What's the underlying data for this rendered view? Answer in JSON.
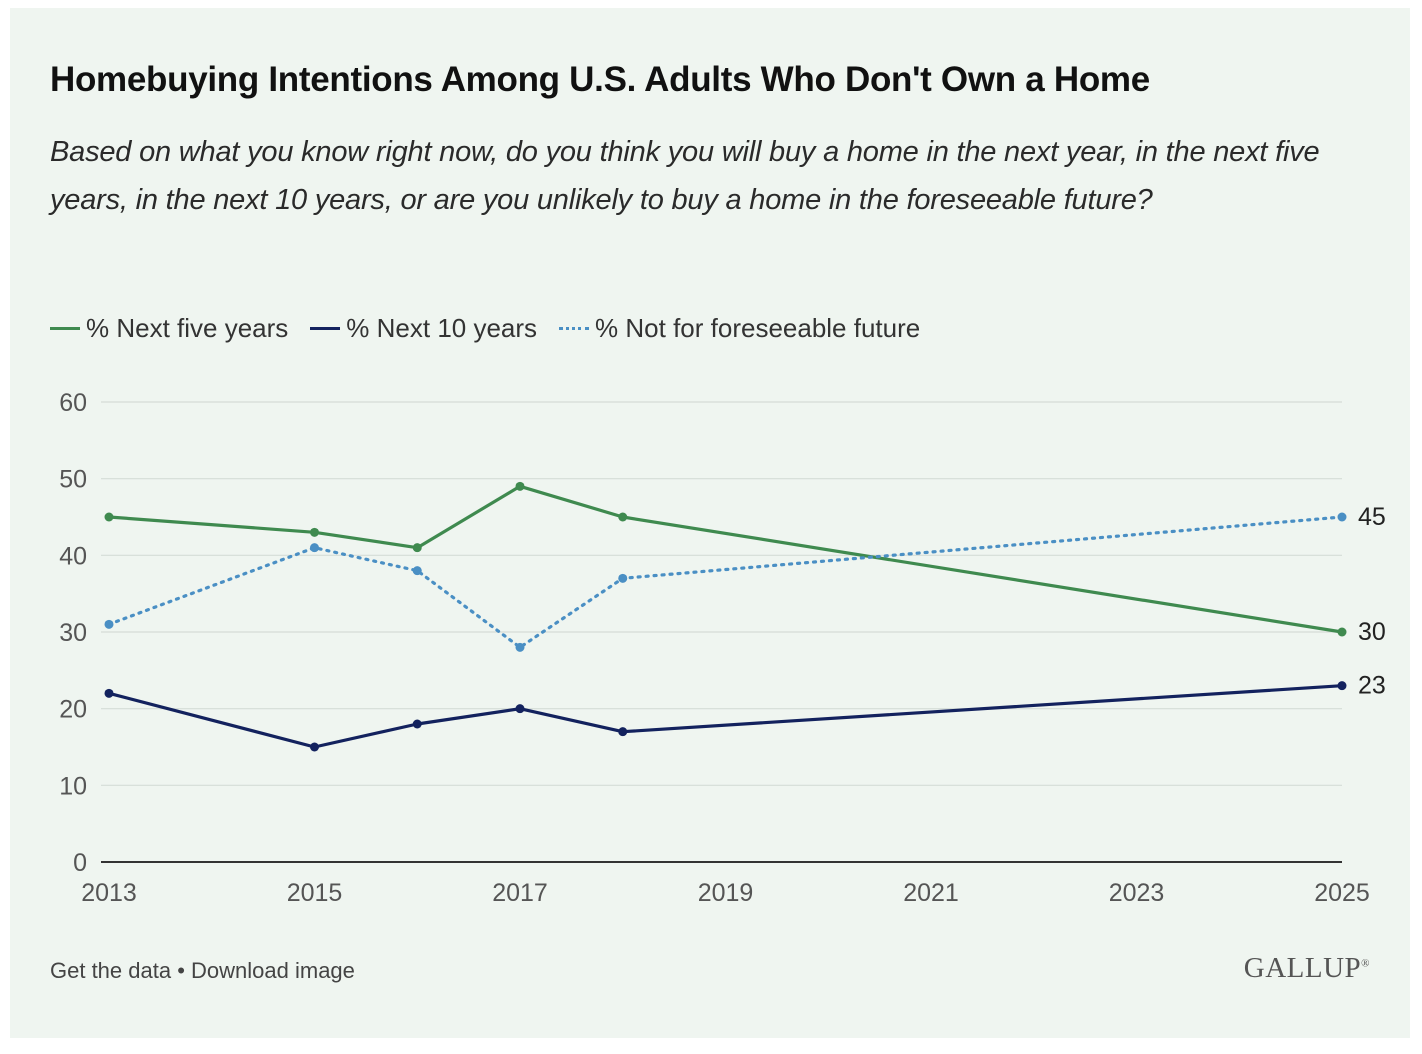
{
  "header": {
    "title": "Homebuying Intentions Among U.S. Adults Who Don't Own a Home",
    "subtitle": "Based on what you know right now, do you think you will buy a home in the next year, in the next five years, in the next 10 years, or are you unlikely to buy a home in the foreseeable future?"
  },
  "footer": {
    "get_data": "Get the data",
    "separator": " • ",
    "download": "Download image",
    "brand": "GALLUP",
    "brand_mark": "®"
  },
  "chart_data": {
    "type": "line",
    "title": "Homebuying Intentions Among U.S. Adults Who Don't Own a Home",
    "xlabel": "",
    "ylabel": "",
    "xlim": [
      2013,
      2025
    ],
    "ylim": [
      0,
      60
    ],
    "x_ticks": [
      2013,
      2015,
      2017,
      2019,
      2021,
      2023,
      2025
    ],
    "y_ticks": [
      0,
      10,
      20,
      30,
      40,
      50,
      60
    ],
    "grid": "horizontal",
    "legend_position": "top-left",
    "series": [
      {
        "name": "% Next five years",
        "color": "#3f8a4f",
        "style": "solid",
        "x": [
          2013,
          2015,
          2016,
          2017,
          2018,
          2025
        ],
        "values": [
          45,
          43,
          41,
          49,
          45,
          30
        ],
        "end_label": "30"
      },
      {
        "name": "% Next 10 years",
        "color": "#13225e",
        "style": "solid",
        "x": [
          2013,
          2015,
          2016,
          2017,
          2018,
          2025
        ],
        "values": [
          22,
          15,
          18,
          20,
          17,
          23
        ],
        "end_label": "23"
      },
      {
        "name": "% Not for foreseeable future",
        "color": "#4a8fc4",
        "style": "dotted",
        "x": [
          2013,
          2015,
          2016,
          2017,
          2018,
          2025
        ],
        "values": [
          31,
          41,
          38,
          28,
          37,
          45
        ],
        "end_label": "45"
      }
    ]
  }
}
